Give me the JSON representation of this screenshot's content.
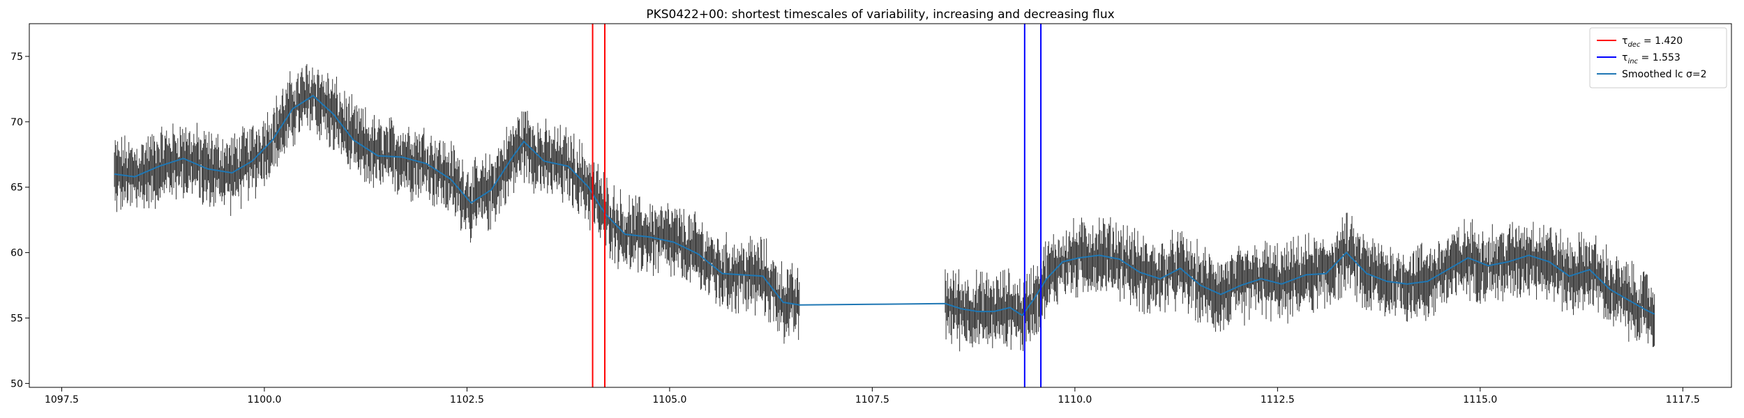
{
  "chart_data": {
    "type": "line",
    "title": "PKS0422+00: shortest timescales of variability, increasing and decreasing flux",
    "xlabel": "",
    "ylabel": "",
    "xlim": [
      1097.1,
      1118.1
    ],
    "ylim": [
      49.7,
      77.5
    ],
    "xticks": [
      1097.5,
      1100.0,
      1102.5,
      1105.0,
      1107.5,
      1110.0,
      1112.5,
      1115.0,
      1117.5
    ],
    "xtick_labels": [
      "1097.5",
      "1100.0",
      "1102.5",
      "1105.0",
      "1107.5",
      "1110.0",
      "1112.5",
      "1115.0",
      "1117.5"
    ],
    "yticks": [
      50,
      55,
      60,
      65,
      70,
      75
    ],
    "ytick_labels": [
      "50",
      "55",
      "60",
      "65",
      "70",
      "75"
    ],
    "grid": false,
    "legend_position": "top-right",
    "vlines": [
      {
        "series": "tau_dec",
        "x": 1104.05,
        "color": "#ff0000"
      },
      {
        "series": "tau_dec",
        "x": 1104.2,
        "color": "#ff0000"
      },
      {
        "series": "tau_inc",
        "x": 1109.38,
        "color": "#0000ff"
      },
      {
        "series": "tau_inc",
        "x": 1109.58,
        "color": "#0000ff"
      }
    ],
    "series": [
      {
        "key": "tau_dec",
        "name": "τdec = 1.420",
        "name_main": "τ",
        "name_sub": "dec",
        "name_rest": " = 1.420",
        "color": "#ff0000",
        "kind": "vline"
      },
      {
        "key": "tau_inc",
        "name": "τinc = 1.553",
        "name_main": "τ",
        "name_sub": "inc",
        "name_rest": " = 1.553",
        "color": "#0000ff",
        "kind": "vline"
      },
      {
        "key": "smoothed",
        "name": "Smoothed lc σ=2",
        "color": "#1f77b4",
        "kind": "line",
        "points": [
          [
            1098.15,
            66.0
          ],
          [
            1098.4,
            65.8
          ],
          [
            1098.7,
            66.6
          ],
          [
            1099.0,
            67.2
          ],
          [
            1099.3,
            66.4
          ],
          [
            1099.6,
            66.1
          ],
          [
            1099.85,
            67.0
          ],
          [
            1100.1,
            68.6
          ],
          [
            1100.35,
            71.0
          ],
          [
            1100.6,
            72.0
          ],
          [
            1100.85,
            70.6
          ],
          [
            1101.1,
            68.6
          ],
          [
            1101.4,
            67.4
          ],
          [
            1101.7,
            67.3
          ],
          [
            1102.0,
            66.8
          ],
          [
            1102.3,
            65.6
          ],
          [
            1102.55,
            63.8
          ],
          [
            1102.8,
            64.8
          ],
          [
            1103.05,
            67.2
          ],
          [
            1103.2,
            68.5
          ],
          [
            1103.45,
            67.0
          ],
          [
            1103.75,
            66.6
          ],
          [
            1104.0,
            65.0
          ],
          [
            1104.2,
            63.0
          ],
          [
            1104.45,
            61.4
          ],
          [
            1104.75,
            61.2
          ],
          [
            1105.05,
            60.8
          ],
          [
            1105.35,
            59.9
          ],
          [
            1105.65,
            58.4
          ],
          [
            1105.9,
            58.3
          ],
          [
            1106.15,
            58.2
          ],
          [
            1106.4,
            56.2
          ],
          [
            1106.6,
            56.0
          ],
          [
            1107.5,
            56.05
          ],
          [
            1108.4,
            56.1
          ],
          [
            1108.6,
            55.7
          ],
          [
            1108.8,
            55.5
          ],
          [
            1109.0,
            55.5
          ],
          [
            1109.2,
            55.8
          ],
          [
            1109.35,
            55.2
          ],
          [
            1109.5,
            56.5
          ],
          [
            1109.65,
            58.0
          ],
          [
            1109.85,
            59.3
          ],
          [
            1110.05,
            59.6
          ],
          [
            1110.3,
            59.8
          ],
          [
            1110.55,
            59.5
          ],
          [
            1110.8,
            58.5
          ],
          [
            1111.05,
            58.0
          ],
          [
            1111.3,
            58.8
          ],
          [
            1111.55,
            57.5
          ],
          [
            1111.8,
            56.8
          ],
          [
            1112.05,
            57.5
          ],
          [
            1112.3,
            58.0
          ],
          [
            1112.55,
            57.6
          ],
          [
            1112.85,
            58.3
          ],
          [
            1113.1,
            58.4
          ],
          [
            1113.35,
            60.0
          ],
          [
            1113.6,
            58.4
          ],
          [
            1113.85,
            57.8
          ],
          [
            1114.1,
            57.6
          ],
          [
            1114.35,
            57.8
          ],
          [
            1114.6,
            58.7
          ],
          [
            1114.85,
            59.6
          ],
          [
            1115.1,
            59.0
          ],
          [
            1115.35,
            59.3
          ],
          [
            1115.6,
            59.8
          ],
          [
            1115.85,
            59.3
          ],
          [
            1116.1,
            58.2
          ],
          [
            1116.35,
            58.7
          ],
          [
            1116.6,
            57.2
          ],
          [
            1116.85,
            56.3
          ],
          [
            1117.05,
            55.6
          ],
          [
            1117.15,
            55.3
          ]
        ]
      }
    ],
    "errorbar_series": {
      "color": "#333333",
      "segments": [
        {
          "x0": 1098.15,
          "x1": 1106.6,
          "halfwidth_mean": 1.6
        },
        {
          "x0": 1108.4,
          "x1": 1117.15,
          "halfwidth_mean": 1.6
        }
      ]
    }
  }
}
